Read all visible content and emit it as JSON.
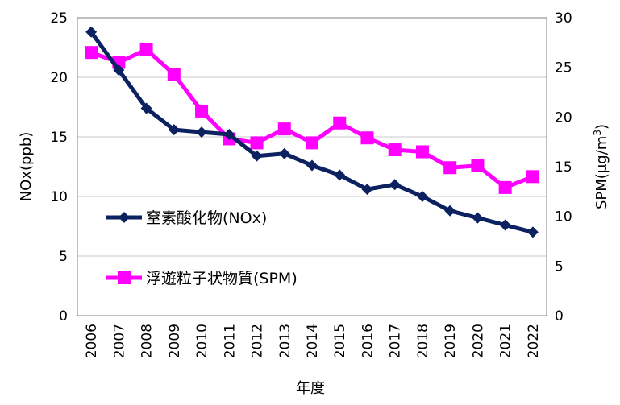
{
  "chart_data": {
    "type": "line",
    "xlabel": "年度",
    "ylabel": "NOx(ppb)",
    "ylabel_right_main": "SPM(",
    "ylabel_right_unit": "μg/m",
    "ylabel_right_sup": "3",
    "ylabel_right_close": ")",
    "ylim": [
      0,
      25
    ],
    "ylim_right": [
      0,
      30
    ],
    "yticks": [
      "0",
      "5",
      "10",
      "15",
      "20",
      "25"
    ],
    "yticks_right": [
      "0",
      "5",
      "10",
      "15",
      "20",
      "25",
      "30"
    ],
    "grid": true,
    "legend_position": "center-left",
    "categories": [
      "2006",
      "2007",
      "2008",
      "2009",
      "2010",
      "2011",
      "2012",
      "2013",
      "2014",
      "2015",
      "2016",
      "2017",
      "2018",
      "2019",
      "2020",
      "2021",
      "2022"
    ],
    "series": [
      {
        "name": "窒素酸化物(NOx)",
        "axis": "left",
        "color": "#0b2160",
        "marker": "diamond",
        "values": [
          23.8,
          20.6,
          17.4,
          15.6,
          15.4,
          15.2,
          13.4,
          13.6,
          12.6,
          11.8,
          10.6,
          11.0,
          10.0,
          8.8,
          8.2,
          7.6,
          7.0
        ]
      },
      {
        "name": "浮遊粒子状物質(SPM)",
        "axis": "right",
        "color": "#ff00ff",
        "marker": "square",
        "values": [
          26.5,
          25.5,
          26.8,
          24.3,
          20.6,
          17.8,
          17.4,
          18.8,
          17.4,
          19.4,
          17.9,
          16.7,
          16.5,
          14.9,
          15.1,
          12.9,
          14.0
        ]
      }
    ]
  }
}
